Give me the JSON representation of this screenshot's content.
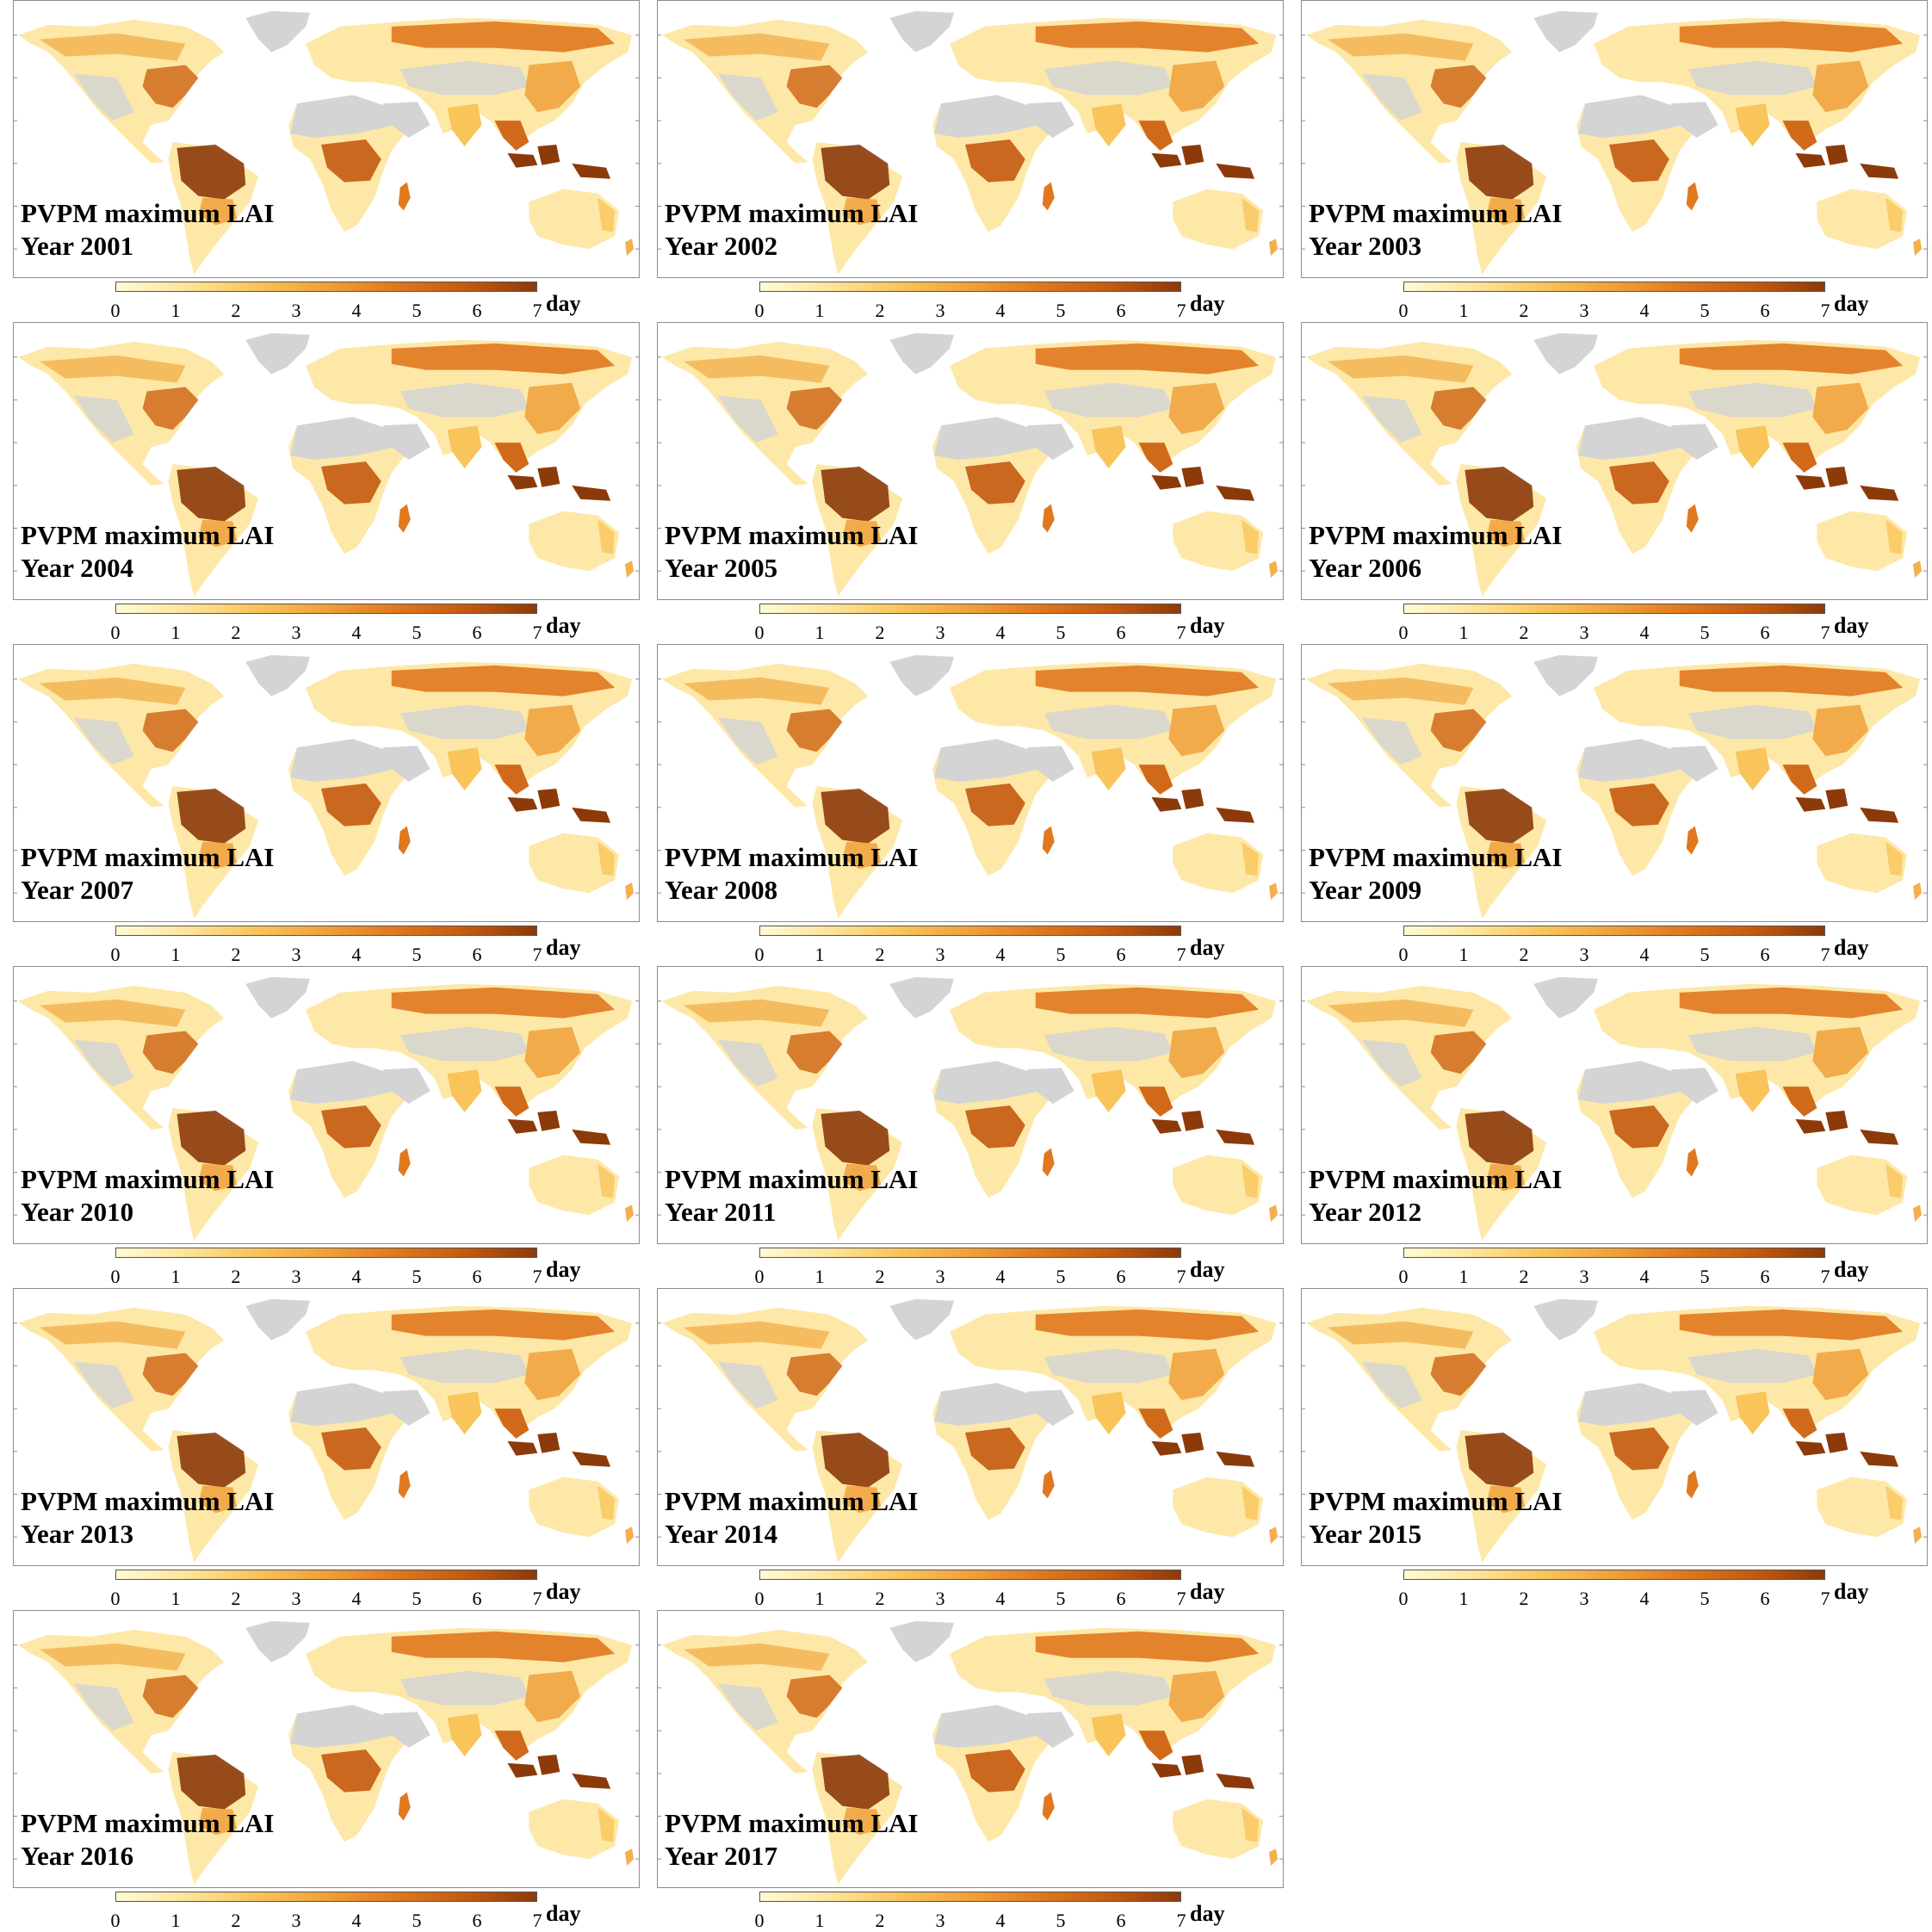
{
  "panel_title": "PVPM maximum LAI",
  "panels": [
    {
      "year_label": "Year 2001"
    },
    {
      "year_label": "Year 2002"
    },
    {
      "year_label": "Year 2003"
    },
    {
      "year_label": "Year 2004"
    },
    {
      "year_label": "Year 2005"
    },
    {
      "year_label": "Year 2006"
    },
    {
      "year_label": "Year 2007"
    },
    {
      "year_label": "Year 2008"
    },
    {
      "year_label": "Year 2009"
    },
    {
      "year_label": "Year 2010"
    },
    {
      "year_label": "Year 2011"
    },
    {
      "year_label": "Year 2012"
    },
    {
      "year_label": "Year 2013"
    },
    {
      "year_label": "Year 2014"
    },
    {
      "year_label": "Year 2015"
    },
    {
      "year_label": "Year 2016"
    },
    {
      "year_label": "Year 2017"
    }
  ],
  "colorbar": {
    "ticks": [
      "0",
      "1",
      "2",
      "3",
      "4",
      "5",
      "6",
      "7"
    ],
    "unit": "day",
    "min": 0,
    "max": 7,
    "colors": [
      "#fffbd6",
      "#fde49a",
      "#f9c45a",
      "#f0a03a",
      "#e0781e",
      "#c45a10",
      "#8c3a0a"
    ]
  },
  "map_colors": {
    "no_data": "#d4d4d4",
    "ocean": "#ffffff",
    "low": "#fde8a8",
    "mid": "#f3b04c",
    "high": "#d06a1a",
    "max": "#8c3a0a"
  }
}
